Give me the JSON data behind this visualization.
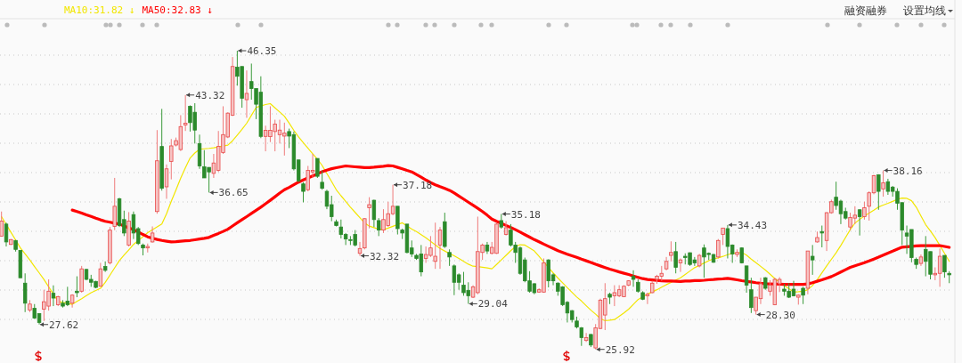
{
  "chart_data": {
    "type": "candlestick",
    "legend": "top left",
    "grid": "y",
    "categories": [
      null,
      null,
      null,
      null,
      null,
      null,
      null,
      null,
      null,
      null,
      null,
      null,
      null,
      null,
      null,
      null,
      null,
      null,
      null,
      null,
      null,
      null,
      null,
      null,
      null,
      null,
      null,
      null,
      null,
      null,
      null,
      null,
      null,
      null,
      null,
      null,
      null,
      null,
      null,
      null,
      null,
      null,
      null,
      null,
      null,
      null,
      null,
      null,
      null,
      null,
      null,
      null,
      null,
      null,
      null,
      null,
      null,
      null,
      null,
      null,
      null,
      null,
      null,
      null,
      null,
      null,
      null,
      null,
      null,
      null,
      null,
      null,
      null,
      null,
      null,
      null,
      null,
      null,
      null,
      null,
      null,
      null,
      null,
      null,
      null,
      null,
      null,
      null,
      null,
      null,
      null,
      null,
      null,
      null,
      null,
      null,
      null,
      null,
      null,
      null,
      null,
      null,
      null,
      null,
      null,
      null,
      null,
      null,
      null,
      null,
      null,
      null,
      null,
      null,
      null,
      null,
      null,
      null,
      null,
      null,
      null,
      null,
      null,
      null,
      null,
      null,
      null,
      null,
      null,
      null,
      null,
      null,
      null,
      null,
      null,
      null,
      null,
      null,
      null,
      null,
      null,
      null,
      null,
      null,
      null,
      null,
      null,
      null,
      null,
      null,
      null,
      null,
      null,
      null,
      null,
      null,
      null,
      null,
      null,
      null,
      null,
      null,
      null,
      null,
      null,
      null,
      null,
      null,
      null,
      null,
      null,
      null,
      null,
      null,
      null,
      null,
      null,
      null,
      null,
      null,
      null,
      null,
      null,
      null,
      null,
      null,
      null,
      null,
      null,
      null,
      null,
      null,
      null,
      null,
      null,
      null,
      null,
      null,
      null,
      null,
      null,
      null
    ],
    "ohlc": [
      [
        33.67,
        35.35,
        33.67,
        34.7
      ],
      [
        34.49,
        34.59,
        32.96,
        33.27
      ],
      [
        33.1,
        33.47,
        33.06,
        33.43
      ],
      [
        33.37,
        33.4,
        32.61,
        32.76
      ],
      [
        32.69,
        32.7,
        30.8,
        30.82
      ],
      [
        30.45,
        31.12,
        28.47,
        29.08
      ],
      [
        28.61,
        29.29,
        28.47,
        29.02
      ],
      [
        28.73,
        29.02,
        28.0,
        28.06
      ],
      [
        28.37,
        28.4,
        27.62,
        27.76
      ],
      [
        28.67,
        30.0,
        27.86,
        29.18
      ],
      [
        28.88,
        30.71,
        28.57,
        29.9
      ],
      [
        29.76,
        30.3,
        28.88,
        29.43
      ],
      [
        28.98,
        29.59,
        28.88,
        29.53
      ],
      [
        29.08,
        29.29,
        28.78,
        28.88
      ],
      [
        29.22,
        30.2,
        28.88,
        28.98
      ],
      [
        29.08,
        29.69,
        28.78,
        29.63
      ],
      [
        29.9,
        30.92,
        29.49,
        29.8
      ],
      [
        29.9,
        31.63,
        29.8,
        31.43
      ],
      [
        31.39,
        31.43,
        30.65,
        30.71
      ],
      [
        30.71,
        31.02,
        30.2,
        30.51
      ],
      [
        30.57,
        30.61,
        30.1,
        30.16
      ],
      [
        30.24,
        31.84,
        30.2,
        31.43
      ],
      [
        31.59,
        31.94,
        31.22,
        31.33
      ],
      [
        31.84,
        34.29,
        31.73,
        34.08
      ],
      [
        34.33,
        37.65,
        34.08,
        35.71
      ],
      [
        36.22,
        36.29,
        34.29,
        34.39
      ],
      [
        34.8,
        35.41,
        33.67,
        33.88
      ],
      [
        33.06,
        35.31,
        32.96,
        34.69
      ],
      [
        35.14,
        35.35,
        33.47,
        33.88
      ],
      [
        34.18,
        34.29,
        33.06,
        33.16
      ],
      [
        33.06,
        33.16,
        32.35,
        32.86
      ],
      [
        32.86,
        33.16,
        32.55,
        32.96
      ],
      [
        33.27,
        34.33,
        33.22,
        33.88
      ],
      [
        35.35,
        40.92,
        35.2,
        38.82
      ],
      [
        39.8,
        42.37,
        36.78,
        36.94
      ],
      [
        37.04,
        38.57,
        36.22,
        38.27
      ],
      [
        38.78,
        40.31,
        37.55,
        39.84
      ],
      [
        39.9,
        40.41,
        39.8,
        40.2
      ],
      [
        39.59,
        41.94,
        39.49,
        41.16
      ],
      [
        41.27,
        43.32,
        40.86,
        41.39
      ],
      [
        42.55,
        42.61,
        40.82,
        41.43
      ],
      [
        42.14,
        42.76,
        40.0,
        40.92
      ],
      [
        40.0,
        40.61,
        38.27,
        38.47
      ],
      [
        38.41,
        39.55,
        37.65,
        37.65
      ],
      [
        38.37,
        38.37,
        36.65,
        38.06
      ],
      [
        37.96,
        39.29,
        37.65,
        38.67
      ],
      [
        38.16,
        40.86,
        38.06,
        39.8
      ],
      [
        39.39,
        42.55,
        39.29,
        40.61
      ],
      [
        40.45,
        42.14,
        40.37,
        42.08
      ],
      [
        41.94,
        45.92,
        41.88,
        45.27
      ],
      [
        45.22,
        46.35,
        43.96,
        44.6
      ],
      [
        45.27,
        45.27,
        42.45,
        43.1
      ],
      [
        43.0,
        45.0,
        41.76,
        43.43
      ],
      [
        44.24,
        45.47,
        43.0,
        43.76
      ],
      [
        43.76,
        43.76,
        41.67,
        42.69
      ],
      [
        43.51,
        44.6,
        40.37,
        40.49
      ],
      [
        40.49,
        41.22,
        39.47,
        40.9
      ],
      [
        40.47,
        42.55,
        40.1,
        40.9
      ],
      [
        40.82,
        41.63,
        39.47,
        41.33
      ],
      [
        40.61,
        41.63,
        40.0,
        40.92
      ],
      [
        40.51,
        41.43,
        39.18,
        40.71
      ],
      [
        40.82,
        41.02,
        39.69,
        40.51
      ],
      [
        40.61,
        40.82,
        38.16,
        38.27
      ],
      [
        38.88,
        38.88,
        37.35,
        37.45
      ],
      [
        37.24,
        37.35,
        35.98,
        36.73
      ],
      [
        36.84,
        38.47,
        36.73,
        38.16
      ],
      [
        38.06,
        39.29,
        37.65,
        38.16
      ],
      [
        38.98,
        38.98,
        37.65,
        37.76
      ],
      [
        37.35,
        38.16,
        36.84,
        36.94
      ],
      [
        36.73,
        36.84,
        35.51,
        35.71
      ],
      [
        35.82,
        36.43,
        34.69,
        35.0
      ],
      [
        34.65,
        34.8,
        34.33,
        34.39
      ],
      [
        34.29,
        34.8,
        33.51,
        33.78
      ],
      [
        33.78,
        33.88,
        33.06,
        33.47
      ],
      [
        33.43,
        33.67,
        33.06,
        33.37
      ],
      [
        33.78,
        34.08,
        32.96,
        33.06
      ],
      [
        32.49,
        33.27,
        32.32,
        32.82
      ],
      [
        32.86,
        34.9,
        32.76,
        34.86
      ],
      [
        35.61,
        36.33,
        34.2,
        35.82
      ],
      [
        36.12,
        36.16,
        34.29,
        34.8
      ],
      [
        34.73,
        34.9,
        33.67,
        34.08
      ],
      [
        34.08,
        35.51,
        33.88,
        34.8
      ],
      [
        34.39,
        36.02,
        34.29,
        35.2
      ],
      [
        35.2,
        37.18,
        35.1,
        35.71
      ],
      [
        35.71,
        35.71,
        33.78,
        34.18
      ],
      [
        34.08,
        34.18,
        33.47,
        33.88
      ],
      [
        34.49,
        34.49,
        32.49,
        32.55
      ],
      [
        32.86,
        33.37,
        32.24,
        32.45
      ],
      [
        32.35,
        32.45,
        32.04,
        32.14
      ],
      [
        32.45,
        33.06,
        30.92,
        31.22
      ],
      [
        32.14,
        32.96,
        31.84,
        32.41
      ],
      [
        32.35,
        33.67,
        32.24,
        32.86
      ],
      [
        31.94,
        34.59,
        31.43,
        32.29
      ],
      [
        33.06,
        34.29,
        31.43,
        34.08
      ],
      [
        34.65,
        35.27,
        32.86,
        32.96
      ],
      [
        32.55,
        32.76,
        31.63,
        32.24
      ],
      [
        31.63,
        31.73,
        29.63,
        30.51
      ],
      [
        31.02,
        31.12,
        30.0,
        30.51
      ],
      [
        30.31,
        31.22,
        29.59,
        29.8
      ],
      [
        29.96,
        30.51,
        29.04,
        29.59
      ],
      [
        29.49,
        30.31,
        29.43,
        30.2
      ],
      [
        29.8,
        35.0,
        29.69,
        32.61
      ],
      [
        32.55,
        33.16,
        32.04,
        33.06
      ],
      [
        33.06,
        33.27,
        32.45,
        32.65
      ],
      [
        32.49,
        33.27,
        32.41,
        32.9
      ],
      [
        32.49,
        34.59,
        32.45,
        34.49
      ],
      [
        34.73,
        35.18,
        34.18,
        34.29
      ],
      [
        33.78,
        34.69,
        33.71,
        34.24
      ],
      [
        34.08,
        34.49,
        32.96,
        33.06
      ],
      [
        33.06,
        33.27,
        31.84,
        32.55
      ],
      [
        32.86,
        32.96,
        31.02,
        31.12
      ],
      [
        32.04,
        32.2,
        30.51,
        30.61
      ],
      [
        30.61,
        31.27,
        29.8,
        29.9
      ],
      [
        30.41,
        30.45,
        29.69,
        29.8
      ],
      [
        29.84,
        30.1,
        29.8,
        30.0
      ],
      [
        29.84,
        32.14,
        29.8,
        31.84
      ],
      [
        32.04,
        32.08,
        30.16,
        30.61
      ],
      [
        31.02,
        31.12,
        30.31,
        30.61
      ],
      [
        30.45,
        30.51,
        29.59,
        29.9
      ],
      [
        30.2,
        30.24,
        28.88,
        28.98
      ],
      [
        29.14,
        29.22,
        27.76,
        28.41
      ],
      [
        28.57,
        28.61,
        27.76,
        27.96
      ],
      [
        27.86,
        28.16,
        27.35,
        27.45
      ],
      [
        27.39,
        27.45,
        26.16,
        26.73
      ],
      [
        26.53,
        27.04,
        26.43,
        26.73
      ],
      [
        26.94,
        26.98,
        26.08,
        26.22
      ],
      [
        26.02,
        27.65,
        25.92,
        27.39
      ],
      [
        27.35,
        29.39,
        27.31,
        29.29
      ],
      [
        28.27,
        30.45,
        27.24,
        29.39
      ],
      [
        29.69,
        29.8,
        29.02,
        29.49
      ],
      [
        29.59,
        30.31,
        28.88,
        29.8
      ],
      [
        29.59,
        30.31,
        29.49,
        30.0
      ],
      [
        29.53,
        30.31,
        29.49,
        30.24
      ],
      [
        30.31,
        30.65,
        30.24,
        30.61
      ],
      [
        30.92,
        31.33,
        30.2,
        30.71
      ],
      [
        30.51,
        30.71,
        29.8,
        29.9
      ],
      [
        29.8,
        29.9,
        29.29,
        29.35
      ],
      [
        29.59,
        29.8,
        29.02,
        29.69
      ],
      [
        29.8,
        30.61,
        29.76,
        30.45
      ],
      [
        30.71,
        31.02,
        30.41,
        30.92
      ],
      [
        30.92,
        31.63,
        30.61,
        31.12
      ],
      [
        31.43,
        32.24,
        31.33,
        31.94
      ],
      [
        32.35,
        33.31,
        31.94,
        32.55
      ],
      [
        32.61,
        33.27,
        31.12,
        31.53
      ],
      [
        31.84,
        32.14,
        31.22,
        32.04
      ],
      [
        32.29,
        32.49,
        31.73,
        32.2
      ],
      [
        32.53,
        32.55,
        31.63,
        31.73
      ],
      [
        32.04,
        32.24,
        31.63,
        31.84
      ],
      [
        31.63,
        32.45,
        31.53,
        32.35
      ],
      [
        32.86,
        33.1,
        30.82,
        32.24
      ],
      [
        32.49,
        32.55,
        32.04,
        32.41
      ],
      [
        32.41,
        32.45,
        31.84,
        31.88
      ],
      [
        32.24,
        33.47,
        32.14,
        33.37
      ],
      [
        33.78,
        34.24,
        33.06,
        34.22
      ],
      [
        34.18,
        34.43,
        32.14,
        32.96
      ],
      [
        33.06,
        33.1,
        31.84,
        32.45
      ],
      [
        32.41,
        32.76,
        32.24,
        32.55
      ],
      [
        32.86,
        32.9,
        31.8,
        31.84
      ],
      [
        31.63,
        31.63,
        29.8,
        30.31
      ],
      [
        30.0,
        30.82,
        28.41,
        28.78
      ],
      [
        28.57,
        29.49,
        28.3,
        29.49
      ],
      [
        29.39,
        30.82,
        29.02,
        30.41
      ],
      [
        30.82,
        30.86,
        30.0,
        30.1
      ],
      [
        29.9,
        30.65,
        29.59,
        30.31
      ],
      [
        28.98,
        30.82,
        28.94,
        30.71
      ],
      [
        30.41,
        30.86,
        29.84,
        30.71
      ],
      [
        30.04,
        30.41,
        29.59,
        29.9
      ],
      [
        29.9,
        30.45,
        29.43,
        29.49
      ],
      [
        30.04,
        30.61,
        29.55,
        29.59
      ],
      [
        29.49,
        29.69,
        28.98,
        29.63
      ],
      [
        30.1,
        30.2,
        29.02,
        29.63
      ],
      [
        30.1,
        32.65,
        29.69,
        32.65
      ],
      [
        32.29,
        33.06,
        31.02,
        32.04
      ],
      [
        33.27,
        33.98,
        33.22,
        33.57
      ],
      [
        33.98,
        34.39,
        32.9,
        33.88
      ],
      [
        33.37,
        35.31,
        32.65,
        35.27
      ],
      [
        35.27,
        36.16,
        35.2,
        36.02
      ],
      [
        36.33,
        37.39,
        35.47,
        35.76
      ],
      [
        36.06,
        36.16,
        34.49,
        35.2
      ],
      [
        35.35,
        35.61,
        34.8,
        34.9
      ],
      [
        34.29,
        35.27,
        34.08,
        34.94
      ],
      [
        34.9,
        35.71,
        34.49,
        35.1
      ],
      [
        35.47,
        35.51,
        33.71,
        35.0
      ],
      [
        35.0,
        36.02,
        34.8,
        35.61
      ],
      [
        35.71,
        36.73,
        34.73,
        36.63
      ],
      [
        36.63,
        37.86,
        36.53,
        37.8
      ],
      [
        37.86,
        37.9,
        35.47,
        36.73
      ],
      [
        36.9,
        38.16,
        36.37,
        37.31
      ],
      [
        37.39,
        37.59,
        36.49,
        36.73
      ],
      [
        37.02,
        37.1,
        36.37,
        36.73
      ],
      [
        36.73,
        36.94,
        35.47,
        35.92
      ],
      [
        35.96,
        35.96,
        33.06,
        34.08
      ],
      [
        33.88,
        34.39,
        32.45,
        33.67
      ],
      [
        34.12,
        34.12,
        31.88,
        32.2
      ],
      [
        32.08,
        32.2,
        31.43,
        31.73
      ],
      [
        31.8,
        32.41,
        31.63,
        32.24
      ],
      [
        32.76,
        33.67,
        30.92,
        31.94
      ],
      [
        32.61,
        32.61,
        30.71,
        31.06
      ],
      [
        31.02,
        31.53,
        30.65,
        31.12
      ],
      [
        31.12,
        32.82,
        30.2,
        32.29
      ],
      [
        32.35,
        32.35,
        30.82,
        31.22
      ],
      [
        31.12,
        31.27,
        30.45,
        31.02
      ]
    ],
    "series": [
      {
        "name": "MA10:31.82 ↓",
        "type": "line",
        "color": "#f2e600",
        "values": [
          35.0,
          34.47,
          33.93,
          33.4,
          32.86,
          32.45,
          32.04,
          31.59,
          31.15,
          30.7,
          30.2,
          29.7,
          29.2,
          29.13,
          29.07,
          29.0,
          29.2,
          29.39,
          29.6,
          29.8,
          29.95,
          30.1,
          30.5,
          31.0,
          31.5,
          32.0,
          32.37,
          32.73,
          33.1,
          33.37,
          33.63,
          33.9,
          34.1,
          34.3,
          34.5,
          35.2,
          36.05,
          36.83,
          37.63,
          38.34,
          39.01,
          39.35,
          39.61,
          39.64,
          39.67,
          39.71,
          39.77,
          39.83,
          39.89,
          40.19,
          40.58,
          40.97,
          41.39,
          41.93,
          42.47,
          42.57,
          42.67,
          42.73,
          42.44,
          42.16,
          41.87,
          41.4,
          40.9,
          40.45,
          40.06,
          39.68,
          39.3,
          38.93,
          38.5,
          37.95,
          37.4,
          36.84,
          36.43,
          36.04,
          35.65,
          35.29,
          34.93,
          34.57,
          34.35,
          34.25,
          34.15,
          34.11,
          34.22,
          34.34,
          34.46,
          34.58,
          34.36,
          34.15,
          33.98,
          33.77,
          33.55,
          33.31,
          33.07,
          32.82,
          32.65,
          32.48,
          32.32,
          32.14,
          31.94,
          31.75,
          31.61,
          31.58,
          31.54,
          31.49,
          31.43,
          31.73,
          32.04,
          32.35,
          32.67,
          32.95,
          33.08,
          33.06,
          32.85,
          32.65,
          32.28,
          31.9,
          31.52,
          31.15,
          30.8,
          30.47,
          30.14,
          29.82,
          29.5,
          29.23,
          28.91,
          28.6,
          28.33,
          28.03,
          27.88,
          27.92,
          27.96,
          28.18,
          28.41,
          28.67,
          29.0,
          29.33,
          29.52,
          29.7,
          29.85,
          30.0,
          30.18,
          30.35,
          30.5,
          30.66,
          30.82,
          31.05,
          31.28,
          31.51,
          31.67,
          31.83,
          31.99,
          32.11,
          32.18,
          32.28,
          32.4,
          32.49,
          32.52,
          32.55,
          32.37,
          32.09,
          31.85,
          31.6,
          31.35,
          31.06,
          30.77,
          30.5,
          30.28,
          30.07,
          29.84,
          29.86,
          29.89,
          30.0,
          30.29,
          30.69,
          31.16,
          31.63,
          32.08,
          32.53,
          33.03,
          33.57,
          34.11,
          34.56,
          34.81,
          35.05,
          35.24,
          35.44,
          35.66,
          35.79,
          35.91,
          36.04,
          36.19,
          36.27,
          36.25,
          36.09,
          35.65,
          35.04,
          34.45,
          34.02,
          33.56,
          33.03,
          32.49,
          31.94
        ]
      },
      {
        "name": "MA50:32.83 ↓",
        "type": "line",
        "color": "#ff0000",
        "values": [
          null,
          null,
          null,
          null,
          null,
          null,
          null,
          null,
          null,
          null,
          null,
          null,
          null,
          null,
          null,
          35.45,
          35.35,
          35.24,
          35.12,
          35.01,
          34.89,
          34.78,
          34.68,
          34.62,
          34.55,
          34.49,
          34.36,
          34.23,
          34.11,
          33.95,
          33.78,
          33.62,
          33.52,
          33.44,
          33.37,
          33.32,
          33.27,
          33.29,
          33.32,
          33.35,
          33.37,
          33.42,
          33.47,
          33.52,
          33.58,
          33.72,
          33.85,
          33.99,
          34.14,
          34.36,
          34.58,
          34.79,
          35.0,
          35.22,
          35.43,
          35.65,
          35.88,
          36.12,
          36.36,
          36.61,
          36.84,
          37.0,
          37.18,
          37.36,
          37.51,
          37.65,
          37.79,
          37.93,
          38.07,
          38.18,
          38.28,
          38.35,
          38.41,
          38.47,
          38.44,
          38.41,
          38.38,
          38.35,
          38.35,
          38.38,
          38.42,
          38.45,
          38.49,
          38.47,
          38.37,
          38.27,
          38.16,
          38.06,
          37.88,
          37.7,
          37.51,
          37.33,
          37.18,
          37.05,
          36.93,
          36.8,
          36.62,
          36.41,
          36.2,
          35.99,
          35.78,
          35.57,
          35.35,
          35.1,
          34.83,
          34.68,
          34.54,
          34.4,
          34.26,
          34.11,
          33.94,
          33.77,
          33.6,
          33.43,
          33.28,
          33.12,
          32.97,
          32.82,
          32.67,
          32.55,
          32.43,
          32.32,
          32.21,
          32.09,
          31.98,
          31.87,
          31.74,
          31.63,
          31.52,
          31.41,
          31.32,
          31.22,
          31.13,
          31.04,
          30.94,
          30.85,
          30.76,
          30.7,
          30.67,
          30.64,
          30.61,
          30.6,
          30.59,
          30.58,
          30.57,
          30.59,
          30.6,
          30.62,
          30.63,
          30.65,
          30.68,
          30.7,
          30.73,
          30.75,
          30.78,
          30.73,
          30.68,
          30.62,
          30.57,
          30.53,
          30.48,
          30.44,
          30.41,
          30.4,
          30.39,
          30.38,
          30.37,
          30.37,
          30.37,
          30.37,
          30.37,
          30.4,
          30.48,
          30.58,
          30.68,
          30.79,
          30.9,
          31.05,
          31.21,
          31.37,
          31.53,
          31.64,
          31.74,
          31.85,
          31.97,
          32.1,
          32.23,
          32.37,
          32.51,
          32.64,
          32.78,
          32.91,
          32.94,
          32.97,
          33.0,
          33.02,
          33.02,
          33.02,
          33.02,
          33.02,
          32.96,
          32.9
        ]
      }
    ],
    "value_labels": [
      null,
      null,
      null,
      null,
      null,
      null,
      null,
      null,
      "27.62",
      null,
      null,
      null,
      null,
      null,
      null,
      null,
      null,
      null,
      null,
      null,
      null,
      null,
      null,
      null,
      null,
      null,
      null,
      null,
      null,
      null,
      null,
      null,
      null,
      null,
      null,
      null,
      null,
      null,
      null,
      "43.32",
      null,
      null,
      null,
      null,
      "36.65",
      null,
      null,
      null,
      null,
      null,
      "46.35",
      null,
      null,
      null,
      null,
      null,
      null,
      null,
      null,
      null,
      null,
      null,
      null,
      null,
      null,
      null,
      null,
      null,
      null,
      null,
      null,
      null,
      null,
      null,
      null,
      null,
      "32.32",
      null,
      null,
      null,
      null,
      null,
      null,
      "37.18",
      null,
      null,
      null,
      null,
      null,
      null,
      null,
      null,
      null,
      null,
      null,
      null,
      null,
      null,
      null,
      "29.04",
      null,
      null,
      null,
      null,
      null,
      null,
      "35.18",
      null,
      null,
      null,
      null,
      null,
      null,
      null,
      null,
      null,
      null,
      null,
      null,
      null,
      null,
      null,
      null,
      null,
      null,
      null,
      "25.92",
      null,
      null,
      null,
      null,
      null,
      null,
      null,
      null,
      null,
      null,
      null,
      null,
      null,
      null,
      null,
      null,
      null,
      null,
      null,
      null,
      null,
      null,
      null,
      null,
      null,
      null,
      null,
      "34.43",
      null,
      null,
      null,
      null,
      null,
      "28.30",
      null,
      null,
      null,
      null,
      null,
      null,
      null,
      null,
      null,
      null,
      null,
      null,
      null,
      null,
      null,
      null,
      null,
      null,
      null,
      null,
      null,
      null,
      null,
      null,
      null,
      null,
      "38.16",
      null,
      null,
      null,
      null,
      null,
      null,
      null,
      null,
      null,
      null,
      null,
      null,
      null,
      null
    ],
    "annotations": [
      "融资融券",
      "设置均线"
    ]
  }
}
